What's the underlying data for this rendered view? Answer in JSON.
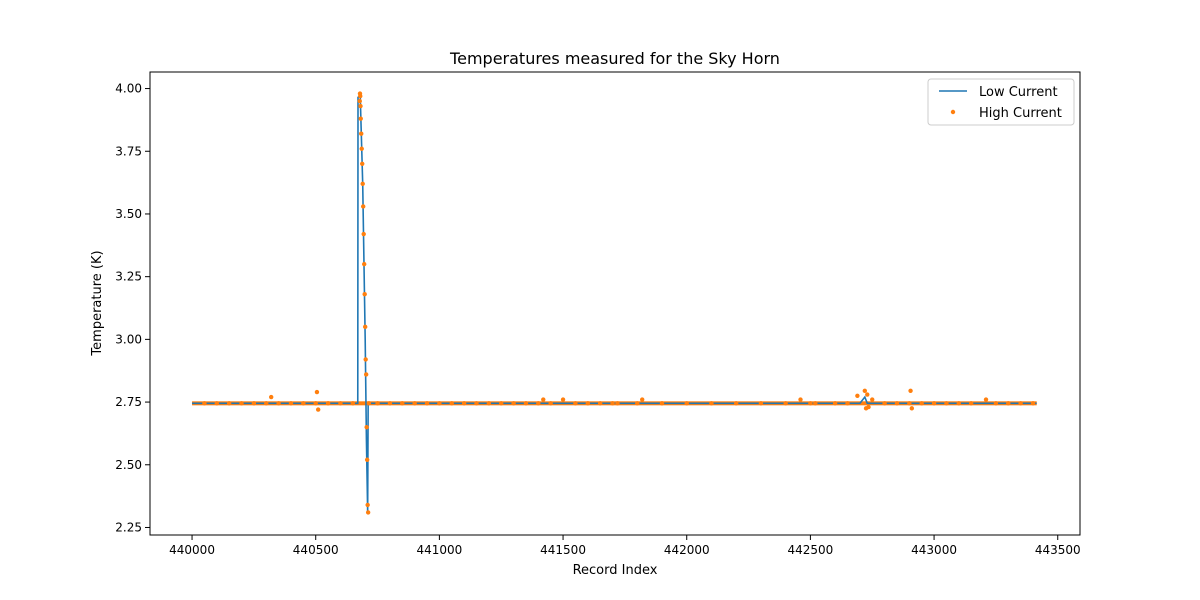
{
  "chart_data": {
    "type": "line",
    "title": "Temperatures measured for the Sky Horn",
    "xlabel": "Record Index",
    "ylabel": "Temperature (K)",
    "xlim": [
      439830,
      443590
    ],
    "ylim": [
      2.22,
      4.066
    ],
    "xticks": [
      440000,
      440500,
      441000,
      441500,
      442000,
      442500,
      443000,
      443500
    ],
    "yticks": [
      2.25,
      2.5,
      2.75,
      3.0,
      3.25,
      3.5,
      3.75,
      4.0
    ],
    "xtick_labels": [
      "440000",
      "440500",
      "441000",
      "441500",
      "442000",
      "442500",
      "443000",
      "443500"
    ],
    "ytick_labels": [
      "2.25",
      "2.50",
      "2.75",
      "3.00",
      "3.25",
      "3.50",
      "3.75",
      "4.00"
    ],
    "grid": false,
    "legend_position": "top-right",
    "series": [
      {
        "name": "Low Current",
        "kind": "line",
        "color": "#1f77b4",
        "x": [
          440000,
          440200,
          440500,
          440670,
          440671,
          440680,
          440690,
          440700,
          440705,
          440710,
          440712,
          440900,
          441500,
          442000,
          442500,
          442700,
          442720,
          442730,
          442900,
          443200,
          443415
        ],
        "y": [
          2.745,
          2.745,
          2.745,
          2.745,
          3.965,
          3.97,
          3.62,
          3.0,
          2.6,
          2.31,
          2.745,
          2.745,
          2.745,
          2.745,
          2.745,
          2.745,
          2.77,
          2.745,
          2.745,
          2.745,
          2.745
        ]
      },
      {
        "name": "High Current",
        "kind": "scatter",
        "color": "#ff7f0e",
        "x": [
          440050,
          440100,
          440150,
          440200,
          440250,
          440300,
          440320,
          440350,
          440400,
          440450,
          440500,
          440505,
          440510,
          440550,
          440600,
          440650,
          440678,
          440679,
          440680,
          440681,
          440682,
          440684,
          440686,
          440688,
          440690,
          440692,
          440694,
          440696,
          440698,
          440700,
          440702,
          440704,
          440706,
          440708,
          440710,
          440712,
          440715,
          440750,
          440800,
          440850,
          440900,
          440950,
          441000,
          441050,
          441100,
          441150,
          441200,
          441250,
          441300,
          441350,
          441400,
          441420,
          441450,
          441500,
          441550,
          441600,
          441650,
          441700,
          441720,
          441800,
          441820,
          441900,
          442000,
          442100,
          442200,
          442300,
          442400,
          442460,
          442500,
          442520,
          442600,
          442650,
          442690,
          442720,
          442725,
          442730,
          442735,
          442750,
          442800,
          442850,
          442900,
          442905,
          442910,
          442950,
          443000,
          443050,
          443100,
          443150,
          443210,
          443250,
          443300,
          443350,
          443400
        ],
        "y": [
          2.745,
          2.745,
          2.745,
          2.745,
          2.745,
          2.745,
          2.77,
          2.745,
          2.745,
          2.745,
          2.745,
          2.79,
          2.72,
          2.745,
          2.745,
          2.745,
          3.95,
          3.98,
          3.97,
          3.93,
          3.88,
          3.82,
          3.76,
          3.7,
          3.62,
          3.53,
          3.42,
          3.3,
          3.18,
          3.05,
          2.92,
          2.86,
          2.65,
          2.52,
          2.34,
          2.31,
          2.745,
          2.745,
          2.745,
          2.745,
          2.745,
          2.745,
          2.745,
          2.745,
          2.745,
          2.745,
          2.745,
          2.745,
          2.745,
          2.745,
          2.745,
          2.76,
          2.745,
          2.76,
          2.745,
          2.745,
          2.745,
          2.745,
          2.745,
          2.745,
          2.76,
          2.745,
          2.745,
          2.745,
          2.745,
          2.745,
          2.745,
          2.76,
          2.745,
          2.745,
          2.745,
          2.745,
          2.775,
          2.795,
          2.725,
          2.78,
          2.73,
          2.76,
          2.745,
          2.745,
          2.745,
          2.795,
          2.725,
          2.745,
          2.745,
          2.745,
          2.745,
          2.745,
          2.76,
          2.745,
          2.745,
          2.745,
          2.745
        ]
      }
    ],
    "band": {
      "series": "High Current",
      "x_start": 440000,
      "x_end": 443415,
      "y_center": 2.745,
      "half_width": 0.008
    }
  }
}
